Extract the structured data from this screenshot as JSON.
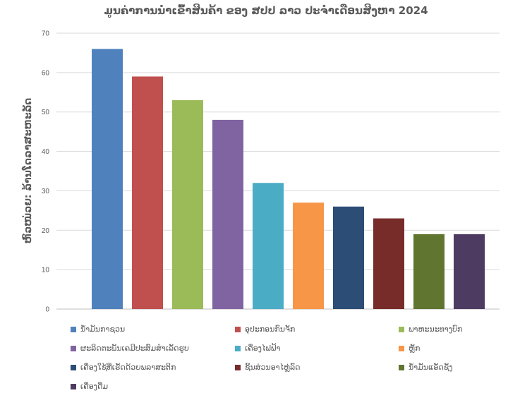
{
  "chart_data": {
    "type": "bar",
    "title": "ມູນຄ່າການນຳເຂົ້າສິນຄ້າ ຂອງ ສປປ ລາວ ປະຈຳເດືອນສິງຫາ 2024",
    "ylabel": "ຫົວໜ່ວຍ: ລ້ານໂດລາສະຫະລັດ",
    "xlabel": "",
    "ylim": [
      0,
      70
    ],
    "yticks": [
      0,
      10,
      20,
      30,
      40,
      50,
      60,
      70
    ],
    "grid": true,
    "legend_position": "bottom",
    "categories": [
      "ນ້ຳມັນກາຊວນ",
      "ອຸປະກອນກົນຈັກ",
      "ພາຫະນະທາງບົກ",
      "ຜະລິດຕະພັນເຄມີປະສົມສຳເລັດຮູບ",
      "ເຄື່ອງໄຟຟ້າ",
      "ຫຼັກ",
      "ເຄື່ອງໃຊ້ທີ່ເຮັດດ້ວຍພລາສະຕິກ",
      "ຊິ້ນສ່ວນອາໄຫຼ່ລົດ",
      "ນ້ຳມັນແອັດຊັງ",
      "ເຄື່ອງດື່ມ"
    ],
    "values": [
      66,
      59,
      53,
      48,
      32,
      27,
      26,
      23,
      19,
      19
    ],
    "colors": [
      "#4f81bd",
      "#c0504d",
      "#9bbb59",
      "#8064a2",
      "#4bacc6",
      "#f79646",
      "#2c4d75",
      "#772c2a",
      "#5f7530",
      "#4d3b62"
    ]
  }
}
